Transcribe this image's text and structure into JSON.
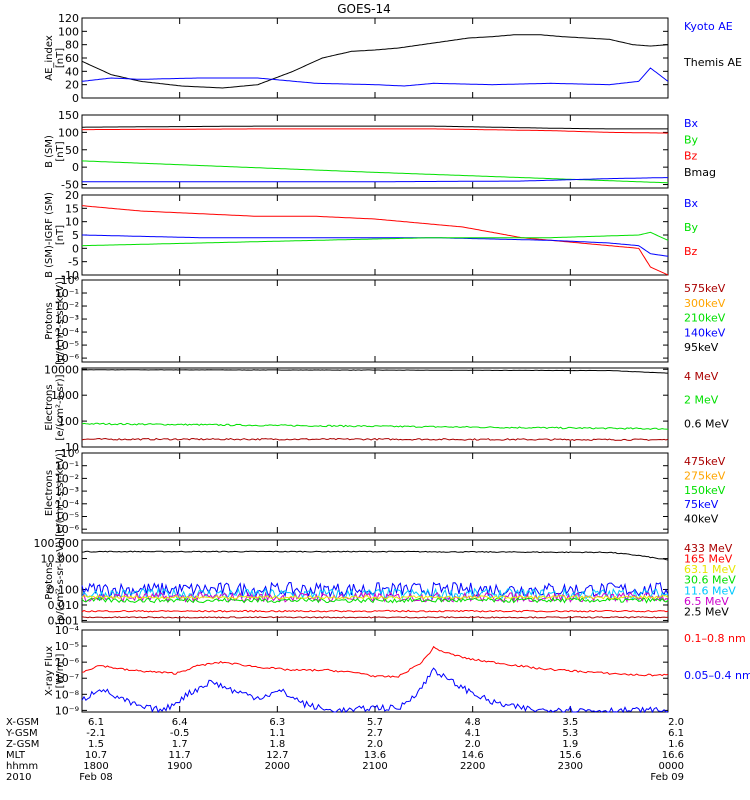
{
  "title": "GOES-14",
  "colors": {
    "black": "#000000",
    "blue": "#0000ff",
    "green": "#00e000",
    "red": "#ff0000",
    "darkred": "#aa0000",
    "orange": "#ffa500",
    "yellow": "#e8e800",
    "cyan": "#00c8ff",
    "lime": "#00ff00",
    "magenta": "#cc00cc"
  },
  "chart_data": [
    {
      "type": "line",
      "ylabel": [
        "AE_index",
        "[nT]"
      ],
      "yticks": [
        "120",
        "100",
        "80",
        "60",
        "40",
        "20",
        "0"
      ],
      "ylim": [
        0,
        120
      ],
      "legend": [
        {
          "label": "Kyoto AE",
          "color": "#0000ff"
        },
        {
          "label": "Themis AE",
          "color": "#000000"
        }
      ],
      "series": [
        {
          "color": "#000000",
          "x": [
            0,
            0.05,
            0.1,
            0.17,
            0.24,
            0.3,
            0.36,
            0.41,
            0.46,
            0.5,
            0.54,
            0.58,
            0.62,
            0.66,
            0.7,
            0.74,
            0.78,
            0.82,
            0.86,
            0.9,
            0.94,
            0.97,
            1.0
          ],
          "y": [
            55,
            35,
            25,
            18,
            15,
            20,
            40,
            60,
            70,
            72,
            75,
            80,
            85,
            90,
            92,
            95,
            95,
            92,
            90,
            88,
            80,
            78,
            80
          ]
        },
        {
          "color": "#0000ff",
          "x": [
            0,
            0.05,
            0.1,
            0.2,
            0.3,
            0.4,
            0.5,
            0.55,
            0.6,
            0.7,
            0.8,
            0.9,
            0.95,
            0.97,
            1.0
          ],
          "y": [
            25,
            30,
            28,
            30,
            30,
            22,
            20,
            18,
            22,
            20,
            22,
            20,
            25,
            45,
            25
          ]
        }
      ]
    },
    {
      "type": "line",
      "ylabel": [
        "B (SM)",
        "[nT]"
      ],
      "yticks": [
        "150",
        "100",
        "50",
        "0",
        "-50"
      ],
      "ylim": [
        -60,
        150
      ],
      "legend": [
        {
          "label": "Bx",
          "color": "#0000ff"
        },
        {
          "label": "By",
          "color": "#00e000"
        },
        {
          "label": "Bz",
          "color": "#ff0000"
        },
        {
          "label": "Bmag",
          "color": "#000000"
        }
      ],
      "series": [
        {
          "color": "#000000",
          "x": [
            0,
            0.3,
            0.6,
            0.8,
            0.9,
            1.0
          ],
          "y": [
            115,
            118,
            118,
            112,
            110,
            110
          ]
        },
        {
          "color": "#ff0000",
          "x": [
            0,
            0.3,
            0.6,
            0.8,
            0.9,
            1.0
          ],
          "y": [
            108,
            110,
            110,
            105,
            100,
            98
          ]
        },
        {
          "color": "#00e000",
          "x": [
            0,
            0.5,
            0.75,
            1.0
          ],
          "y": [
            18,
            -15,
            -30,
            -45
          ]
        },
        {
          "color": "#0000ff",
          "x": [
            0,
            0.5,
            0.75,
            0.9,
            1.0
          ],
          "y": [
            -42,
            -42,
            -40,
            -33,
            -30
          ]
        }
      ]
    },
    {
      "type": "line",
      "ylabel": [
        "B (SM)-IGRF (SM)",
        "[nT]"
      ],
      "yticks": [
        "20",
        "15",
        "10",
        "5",
        "0",
        "-5",
        "-10"
      ],
      "ylim": [
        -10,
        20
      ],
      "legend": [
        {
          "label": "Bx",
          "color": "#0000ff"
        },
        {
          "label": "By",
          "color": "#00e000"
        },
        {
          "label": "Bz",
          "color": "#ff0000"
        }
      ],
      "series": [
        {
          "color": "#ff0000",
          "x": [
            0,
            0.1,
            0.2,
            0.3,
            0.4,
            0.5,
            0.55,
            0.6,
            0.65,
            0.7,
            0.75,
            0.8,
            0.85,
            0.9,
            0.95,
            0.97,
            1.0
          ],
          "y": [
            16,
            14,
            13,
            12,
            12,
            11,
            10,
            9,
            8,
            6,
            4,
            3,
            2,
            1,
            0,
            -7,
            -10
          ]
        },
        {
          "color": "#0000ff",
          "x": [
            0,
            0.2,
            0.4,
            0.6,
            0.8,
            0.9,
            0.95,
            0.97,
            1.0
          ],
          "y": [
            5,
            4,
            4,
            4,
            3,
            2,
            1,
            -2,
            -3
          ]
        },
        {
          "color": "#00e000",
          "x": [
            0,
            0.2,
            0.4,
            0.6,
            0.8,
            0.95,
            0.97,
            1.0
          ],
          "y": [
            1,
            2,
            3,
            4,
            4,
            5,
            6,
            3
          ]
        }
      ]
    },
    {
      "type": "line",
      "ylabel": [
        "Protons",
        "[p/(cm²-s-sr-keV)]"
      ],
      "yticks": [
        "10⁰",
        "10⁻¹",
        "10⁻²",
        "10⁻³",
        "10⁻⁴",
        "10⁻⁵",
        "10⁻⁶"
      ],
      "ylim": [
        -6.3,
        0
      ],
      "scale": "log",
      "legend": [
        {
          "label": "575keV",
          "color": "#aa0000"
        },
        {
          "label": "300keV",
          "color": "#ffa500"
        },
        {
          "label": "210keV",
          "color": "#00e000"
        },
        {
          "label": "140keV",
          "color": "#0000ff"
        },
        {
          "label": "95keV",
          "color": "#000000"
        }
      ],
      "series": []
    },
    {
      "type": "line",
      "ylabel": [
        "Electrons",
        "[e/(cm²-s-sr)]"
      ],
      "yticks": [
        "10000",
        "1000",
        "100",
        "10"
      ],
      "ylim": [
        1,
        4.05
      ],
      "scale": "log",
      "legend": [
        {
          "label": "4 MeV",
          "color": "#aa0000"
        },
        {
          "label": "2 MeV",
          "color": "#00e000"
        },
        {
          "label": "0.6 MeV",
          "color": "#000000"
        }
      ],
      "series": [
        {
          "color": "#000000",
          "x": [
            0,
            0.5,
            0.9,
            0.95,
            1.0
          ],
          "y": [
            3.98,
            3.97,
            3.95,
            3.9,
            3.85
          ],
          "noise": 0.005
        },
        {
          "color": "#00e000",
          "x": [
            0,
            0.5,
            0.9,
            1.0
          ],
          "y": [
            1.9,
            1.8,
            1.72,
            1.7
          ],
          "noise": 0.03
        },
        {
          "color": "#aa0000",
          "x": [
            0,
            0.5,
            1.0
          ],
          "y": [
            1.3,
            1.3,
            1.28
          ],
          "noise": 0.03
        }
      ]
    },
    {
      "type": "line",
      "ylabel": [
        "Electrons",
        "[e/(cm²-s-sr-keV)]"
      ],
      "yticks": [
        "10⁰",
        "10⁻¹",
        "10⁻²",
        "10⁻³",
        "10⁻⁴",
        "10⁻⁵",
        "10⁻⁶"
      ],
      "ylim": [
        -6.3,
        0
      ],
      "scale": "log",
      "legend": [
        {
          "label": "475keV",
          "color": "#aa0000"
        },
        {
          "label": "275keV",
          "color": "#ffa500"
        },
        {
          "label": "150keV",
          "color": "#00e000"
        },
        {
          "label": "75keV",
          "color": "#0000ff"
        },
        {
          "label": "40keV",
          "color": "#000000"
        }
      ],
      "series": []
    },
    {
      "type": "line",
      "ylabel": [
        "Protons",
        "[p/(cm²-s-sr-keV)]"
      ],
      "yticks": [
        "10.000",
        "0.100",
        "0.010",
        "0.001"
      ],
      "ytick_values": [
        1,
        -1,
        -2,
        -3
      ],
      "extra_tick": {
        "label": "100.000",
        "value": 2
      },
      "ylim": [
        -3.1,
        2.2
      ],
      "scale": "log",
      "legend": [
        {
          "label": "433 MeV",
          "color": "#aa0000"
        },
        {
          "label": "165 MeV",
          "color": "#ff0000"
        },
        {
          "label": "63.1 MeV",
          "color": "#e8e800"
        },
        {
          "label": "30.6 MeV",
          "color": "#00e000"
        },
        {
          "label": "11.6 MeV",
          "color": "#00c8ff"
        },
        {
          "label": "6.5 MeV",
          "color": "#cc00cc"
        },
        {
          "label": "2.5 MeV",
          "color": "#000000"
        }
      ],
      "series": [
        {
          "color": "#000000",
          "x": [
            0,
            0.5,
            0.9,
            0.95,
            1.0
          ],
          "y": [
            1.45,
            1.45,
            1.4,
            1.2,
            0.9
          ],
          "noise": 0.03
        },
        {
          "color": "#0000ff",
          "x": [
            0,
            0.5,
            1.0
          ],
          "y": [
            -1.0,
            -1.0,
            -1.0
          ],
          "noise": 0.45
        },
        {
          "color": "#00c8ff",
          "x": [
            0,
            0.5,
            1.0
          ],
          "y": [
            -1.3,
            -1.3,
            -1.3
          ],
          "noise": 0.35
        },
        {
          "color": "#cc00cc",
          "x": [
            0,
            0.5,
            1.0
          ],
          "y": [
            -1.5,
            -1.5,
            -1.5
          ],
          "noise": 0.3
        },
        {
          "color": "#00e000",
          "x": [
            0,
            0.5,
            1.0
          ],
          "y": [
            -1.7,
            -1.7,
            -1.7
          ],
          "noise": 0.15
        },
        {
          "color": "#e8e800",
          "x": [
            0,
            0.5,
            1.0
          ],
          "y": [
            -1.5,
            -1.5,
            -1.5
          ],
          "noise": 0.1
        },
        {
          "color": "#ff0000",
          "x": [
            0,
            0.5,
            1.0
          ],
          "y": [
            -2.4,
            -2.4,
            -2.4
          ],
          "noise": 0.05
        },
        {
          "color": "#aa0000",
          "x": [
            0,
            0.5,
            1.0
          ],
          "y": [
            -2.8,
            -2.8,
            -2.8
          ],
          "noise": 0.04
        }
      ]
    },
    {
      "type": "line",
      "ylabel": [
        "X-ray Flux",
        "[W/m²]"
      ],
      "yticks": [
        "10⁻⁴",
        "10⁻⁵",
        "10⁻⁶",
        "10⁻⁷",
        "10⁻⁸",
        "10⁻⁹"
      ],
      "ylim": [
        -9.1,
        -4
      ],
      "scale": "log",
      "legend": [
        {
          "label": "0.1–0.8 nm",
          "color": "#ff0000"
        },
        {
          "label": "0.05–0.4 nm",
          "color": "#0000ff"
        }
      ],
      "series": [
        {
          "color": "#ff0000",
          "x": [
            0,
            0.03,
            0.08,
            0.12,
            0.16,
            0.2,
            0.24,
            0.3,
            0.36,
            0.42,
            0.48,
            0.5,
            0.54,
            0.58,
            0.6,
            0.62,
            0.66,
            0.7,
            0.74,
            0.78,
            0.82,
            0.86,
            0.9,
            0.95,
            1.0
          ],
          "y": [
            -6.6,
            -6.2,
            -6.5,
            -6.6,
            -6.7,
            -6.2,
            -6.0,
            -6.3,
            -6.5,
            -6.5,
            -6.7,
            -6.9,
            -6.9,
            -6.0,
            -5.1,
            -5.4,
            -5.8,
            -6.0,
            -6.2,
            -6.4,
            -6.5,
            -6.6,
            -6.7,
            -6.8,
            -6.8
          ],
          "noise": 0.06
        },
        {
          "color": "#0000ff",
          "x": [
            0,
            0.03,
            0.06,
            0.1,
            0.14,
            0.18,
            0.22,
            0.26,
            0.3,
            0.34,
            0.38,
            0.42,
            0.46,
            0.5,
            0.54,
            0.58,
            0.6,
            0.62,
            0.66,
            0.7,
            0.74,
            0.78,
            0.82,
            0.86,
            0.9,
            0.94,
            1.0
          ],
          "y": [
            -8.4,
            -7.6,
            -8.2,
            -8.8,
            -9.0,
            -8.0,
            -7.2,
            -7.8,
            -8.2,
            -7.8,
            -8.6,
            -9.0,
            -9.0,
            -8.8,
            -8.9,
            -7.6,
            -6.4,
            -7.0,
            -7.8,
            -8.5,
            -8.8,
            -9.0,
            -8.9,
            -9.0,
            -9.0,
            -9.0,
            -9.0
          ],
          "noise": 0.2
        }
      ]
    }
  ],
  "xaxis": {
    "row_labels": [
      "X-GSM",
      "Y-GSM",
      "Z-GSM",
      "MLT",
      "hhmm",
      "2010"
    ],
    "columns": [
      {
        "values": [
          "6.1",
          "-2.1",
          "1.5",
          "10.7",
          "1800",
          "Feb 08"
        ]
      },
      {
        "values": [
          "6.4",
          "-0.5",
          "1.7",
          "11.7",
          "1900",
          ""
        ]
      },
      {
        "values": [
          "6.3",
          "1.1",
          "1.8",
          "12.7",
          "2000",
          ""
        ]
      },
      {
        "values": [
          "5.7",
          "2.7",
          "2.0",
          "13.6",
          "2100",
          ""
        ]
      },
      {
        "values": [
          "4.8",
          "4.1",
          "2.0",
          "14.6",
          "2200",
          ""
        ]
      },
      {
        "values": [
          "3.5",
          "5.3",
          "1.9",
          "15.6",
          "2300",
          ""
        ]
      },
      {
        "values": [
          "2.0",
          "6.1",
          "1.6",
          "16.6",
          "0000",
          "Feb 09"
        ]
      }
    ]
  }
}
